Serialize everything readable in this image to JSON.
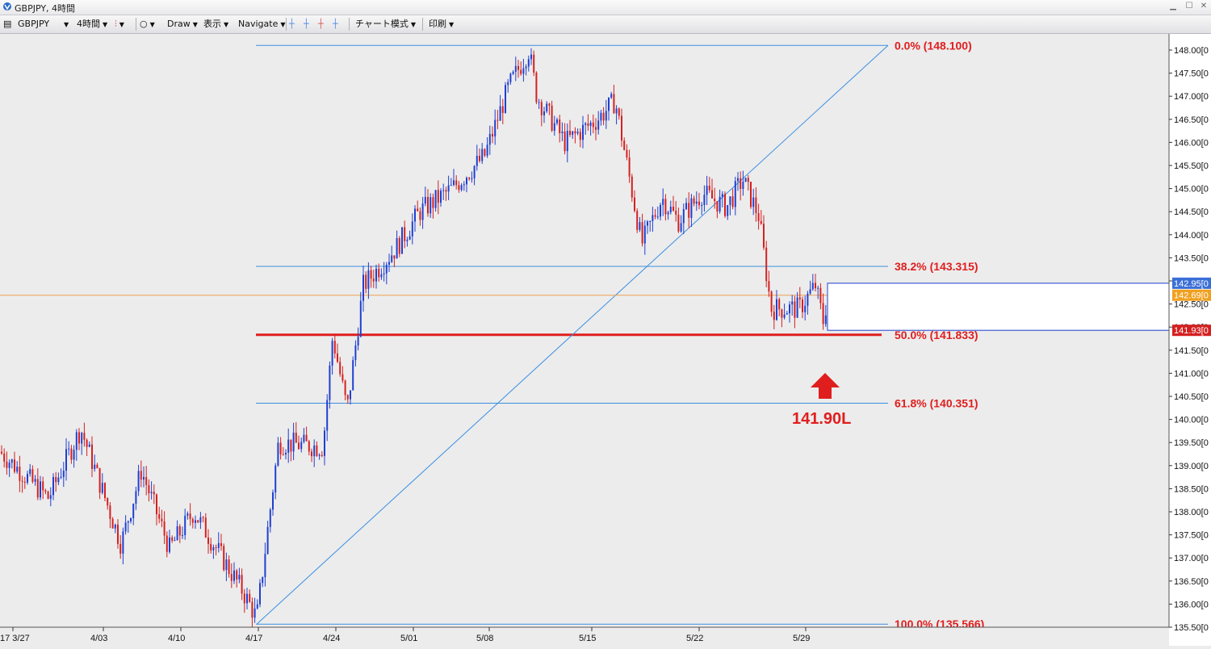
{
  "window": {
    "title": "GBPJPY, 4時間"
  },
  "toolbar": {
    "symbol": "GBPJPY",
    "timeframe": "4時間",
    "draw": "Draw",
    "display": "表示",
    "navigate": "Navigate",
    "chart_style": "チャート模式",
    "print": "印刷"
  },
  "chart": {
    "price_axis": [
      "148.00",
      "147.50",
      "147.00",
      "146.50",
      "146.00",
      "145.50",
      "145.00",
      "144.50",
      "144.00",
      "143.50",
      "143.00",
      "142.50",
      "142.00",
      "141.50",
      "141.00",
      "140.50",
      "140.00",
      "139.50",
      "139.00",
      "138.50",
      "138.00",
      "137.50",
      "137.00",
      "136.50",
      "136.00",
      "135.50"
    ],
    "price_axis_suffix": "[0",
    "price_badges": [
      {
        "label": "142.95",
        "color": "#3a6fd8",
        "value": 142.95
      },
      {
        "label": "142.69",
        "color": "#f0a020",
        "value": 142.69
      },
      {
        "label": "141.93",
        "color": "#d42020",
        "value": 141.93
      }
    ],
    "date_axis": [
      "17 3/27",
      "4/03",
      "4/10",
      "4/17",
      "4/24",
      "5/01",
      "5/08",
      "5/15",
      "5/22",
      "5/29"
    ],
    "fib_levels": [
      {
        "label": "0.0%  (148.100)",
        "value": 148.1
      },
      {
        "label": "38.2%  (143.315)",
        "value": 143.315
      },
      {
        "label": "50.0%  (141.833)",
        "value": 141.833
      },
      {
        "label": "61.8%  (140.351)",
        "value": 140.351
      },
      {
        "label": "100.0%  (135.566)",
        "value": 135.566
      }
    ],
    "annotation": "141.90L",
    "colors": {
      "up": "#1f3fd0",
      "down": "#d42020",
      "fib": "#3a8fe0",
      "highlight": "#e01e1e"
    }
  }
}
